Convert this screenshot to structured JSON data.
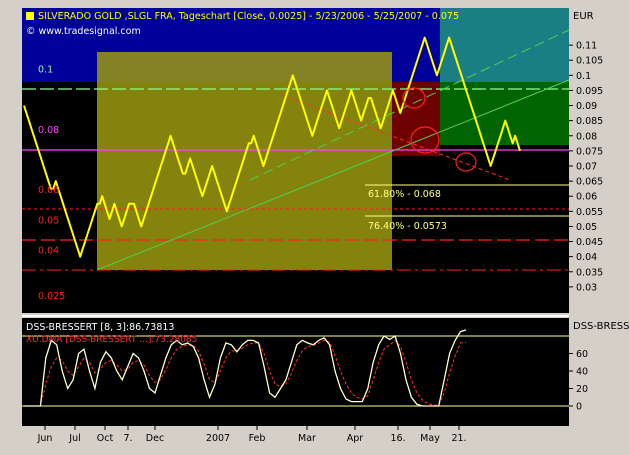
{
  "header": {
    "title": "SILVERADO GOLD ,SLGL FRA, Tageschart [Close, 0.0025] - 5/23/2006 - 5/25/2007 - 0.075",
    "copyright": "© www.tradesignal.com",
    "currency": "EUR",
    "sub_panel_label": "DSS-BRESSI"
  },
  "colors": {
    "background": "#000000",
    "frame": "#d4d0c8",
    "price": "#ffff00",
    "blue_zone": "#0000a0",
    "teal_zone": "#1a7a80",
    "green_zone": "#006000",
    "red_zone": "#6a0000",
    "olive_zone": "#8c8c00",
    "magenta_level": "#ff40ff",
    "red_level": "#ff2020",
    "indicator_main": "#ffffcc",
    "indicator_signal": "#ff3030"
  },
  "chart_data": [
    {
      "type": "line",
      "title": "SILVERADO GOLD ,SLGL FRA, Tageschart [Close, 0.0025] - 5/23/2006 - 5/25/2007 - 0.075",
      "ylim": [
        0.025,
        0.115
      ],
      "y_ticks": [
        "0.11",
        "0.105",
        "0.1",
        "0.095",
        "0.09",
        "0.085",
        "0.08",
        "0.075",
        "0.07",
        "0.065",
        "0.06",
        "0.055",
        "0.05",
        "0.045",
        "0.04",
        "0.035",
        "0.03"
      ],
      "x_ticks": [
        "Jun",
        "Jul",
        "Oct",
        "7.",
        "Dec",
        "2007",
        "Feb",
        "Mar",
        "Apr",
        "16.",
        "May",
        "21."
      ],
      "level_labels": [
        {
          "text": "0.1",
          "value": 0.1
        },
        {
          "text": "0.08",
          "value": 0.08
        },
        {
          "text": "0.06",
          "value": 0.06
        },
        {
          "text": "0.05",
          "value": 0.05
        },
        {
          "text": "0.04",
          "value": 0.04
        },
        {
          "text": "0.025",
          "value": 0.025
        }
      ],
      "fib_labels": [
        "61.80% - 0.068",
        "76.40% - 0.0573"
      ],
      "series": [
        {
          "values": [
            0.09,
            0.0875,
            0.085,
            0.0825,
            0.08,
            0.0775,
            0.075,
            0.0725,
            0.07,
            0.0675,
            0.065,
            0.0625,
            0.0625,
            0.065,
            0.0625,
            0.06,
            0.0575,
            0.055,
            0.0525,
            0.05,
            0.0475,
            0.045,
            0.0425,
            0.04,
            0.0425,
            0.045,
            0.0475,
            0.05,
            0.0525,
            0.055,
            0.0575,
            0.0575,
            0.06,
            0.0575,
            0.055,
            0.0525,
            0.055,
            0.0575,
            0.055,
            0.0525,
            0.05,
            0.0525,
            0.055,
            0.0575,
            0.0575,
            0.0575,
            0.055,
            0.0525,
            0.05,
            0.0525,
            0.055,
            0.0575,
            0.06,
            0.0625,
            0.065,
            0.0675,
            0.07,
            0.0725,
            0.075,
            0.0775,
            0.08,
            0.0775,
            0.075,
            0.0725,
            0.07,
            0.0675,
            0.0675,
            0.07,
            0.0725,
            0.07,
            0.0675,
            0.065,
            0.0625,
            0.06,
            0.0625,
            0.065,
            0.0675,
            0.07,
            0.0675,
            0.065,
            0.0625,
            0.06,
            0.0575,
            0.055,
            0.0575,
            0.06,
            0.0625,
            0.065,
            0.0675,
            0.07,
            0.0725,
            0.075,
            0.0775,
            0.0775,
            0.08,
            0.0775,
            0.075,
            0.0725,
            0.07,
            0.0725,
            0.075,
            0.0775,
            0.08,
            0.0825,
            0.085,
            0.0875,
            0.09,
            0.0925,
            0.095,
            0.0975,
            0.1,
            0.0975,
            0.095,
            0.0925,
            0.09,
            0.0875,
            0.085,
            0.0825,
            0.08,
            0.0825,
            0.085,
            0.0875,
            0.09,
            0.0925,
            0.095,
            0.0925,
            0.09,
            0.0875,
            0.085,
            0.0825,
            0.085,
            0.0875,
            0.09,
            0.0925,
            0.095,
            0.0925,
            0.09,
            0.0875,
            0.085,
            0.0875,
            0.09,
            0.0925,
            0.0925,
            0.09,
            0.0875,
            0.085,
            0.0825,
            0.085,
            0.0875,
            0.09,
            0.0925,
            0.095,
            0.0925,
            0.09,
            0.0875,
            0.09,
            0.0925,
            0.095,
            0.0975,
            0.1,
            0.1025,
            0.105,
            0.1075,
            0.11,
            0.1125,
            0.11,
            0.1075,
            0.105,
            0.1025,
            0.1,
            0.1025,
            0.105,
            0.1075,
            0.11,
            0.1125,
            0.11,
            0.1075,
            0.105,
            0.1025,
            0.1,
            0.0975,
            0.095,
            0.0925,
            0.09,
            0.0875,
            0.085,
            0.0825,
            0.08,
            0.0775,
            0.075,
            0.0725,
            0.07,
            0.0725,
            0.075,
            0.0775,
            0.08,
            0.0825,
            0.085,
            0.0825,
            0.08,
            0.0775,
            0.08,
            0.0775,
            0.075
          ]
        }
      ]
    },
    {
      "type": "line",
      "title": "DSS-BRESSERT [8, 3]:86.73813",
      "subtitle": "XU.DMA [DSS-BRESSERT ...]:73.28085",
      "ylim": [
        -5,
        80
      ],
      "y_ticks": [
        "60",
        "40",
        "20",
        "0"
      ],
      "series": [
        {
          "name": "DSS-BRESSERT [8, 3]:86.73813",
          "values": [
            0,
            0,
            0,
            0,
            55,
            75,
            70,
            40,
            20,
            30,
            60,
            65,
            40,
            20,
            50,
            62,
            55,
            40,
            30,
            45,
            60,
            55,
            40,
            20,
            15,
            35,
            55,
            70,
            75,
            70,
            72,
            68,
            55,
            30,
            10,
            25,
            55,
            72,
            70,
            62,
            70,
            75,
            75,
            72,
            45,
            15,
            10,
            20,
            30,
            50,
            70,
            75,
            72,
            70,
            75,
            78,
            70,
            40,
            20,
            8,
            5,
            5,
            5,
            20,
            50,
            70,
            80,
            76,
            80,
            60,
            30,
            10,
            2,
            0,
            0,
            0,
            0,
            30,
            60,
            75,
            85,
            87
          ]
        },
        {
          "name": "XU.DMA",
          "values": [
            0,
            0,
            0,
            0,
            25,
            45,
            55,
            52,
            40,
            35,
            45,
            55,
            50,
            38,
            42,
            50,
            52,
            47,
            40,
            42,
            50,
            52,
            47,
            35,
            27,
            30,
            42,
            55,
            65,
            68,
            70,
            69,
            63,
            48,
            30,
            27,
            40,
            55,
            63,
            63,
            66,
            70,
            72,
            72,
            60,
            40,
            25,
            22,
            25,
            37,
            52,
            63,
            68,
            69,
            72,
            75,
            73,
            58,
            40,
            25,
            15,
            10,
            8,
            12,
            30,
            50,
            65,
            70,
            75,
            68,
            50,
            30,
            15,
            7,
            3,
            1,
            1,
            15,
            38,
            57,
            72,
            73
          ]
        }
      ]
    }
  ]
}
